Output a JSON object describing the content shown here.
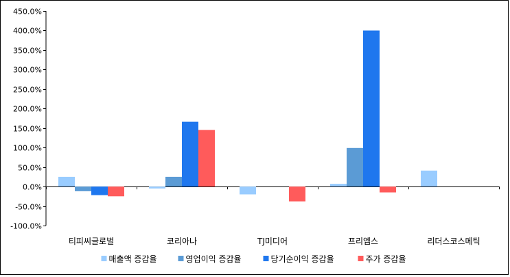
{
  "chart_data": {
    "type": "bar",
    "title": "",
    "xlabel": "",
    "ylabel": "",
    "categories": [
      "티피씨글로벌",
      "코리아나",
      "TJ미디어",
      "프리엠스",
      "리더스코스메틱"
    ],
    "series": [
      {
        "name": "매출액 증감율",
        "color": "#99ccff",
        "values": [
          25,
          -5,
          -20,
          7,
          41
        ]
      },
      {
        "name": "영업이익 증감율",
        "color": "#5b9bd5",
        "values": [
          -12,
          25,
          null,
          99,
          null
        ]
      },
      {
        "name": "당기순이익 증감율",
        "color": "#1f77ee",
        "values": [
          -22,
          166,
          null,
          400,
          null
        ]
      },
      {
        "name": "주가 증감율",
        "color": "#ff5b5b",
        "values": [
          -25,
          145,
          -38,
          -15,
          null
        ]
      }
    ],
    "ylim": [
      -100,
      450
    ],
    "ytick_step": 50,
    "ytick_labels": [
      "-100.0%",
      "-50.0%",
      "0.0%",
      "50.0%",
      "100.0%",
      "150.0%",
      "200.0%",
      "250.0%",
      "300.0%",
      "350.0%",
      "400.0%",
      "450.0%"
    ],
    "grid": false,
    "legend_position": "bottom"
  }
}
